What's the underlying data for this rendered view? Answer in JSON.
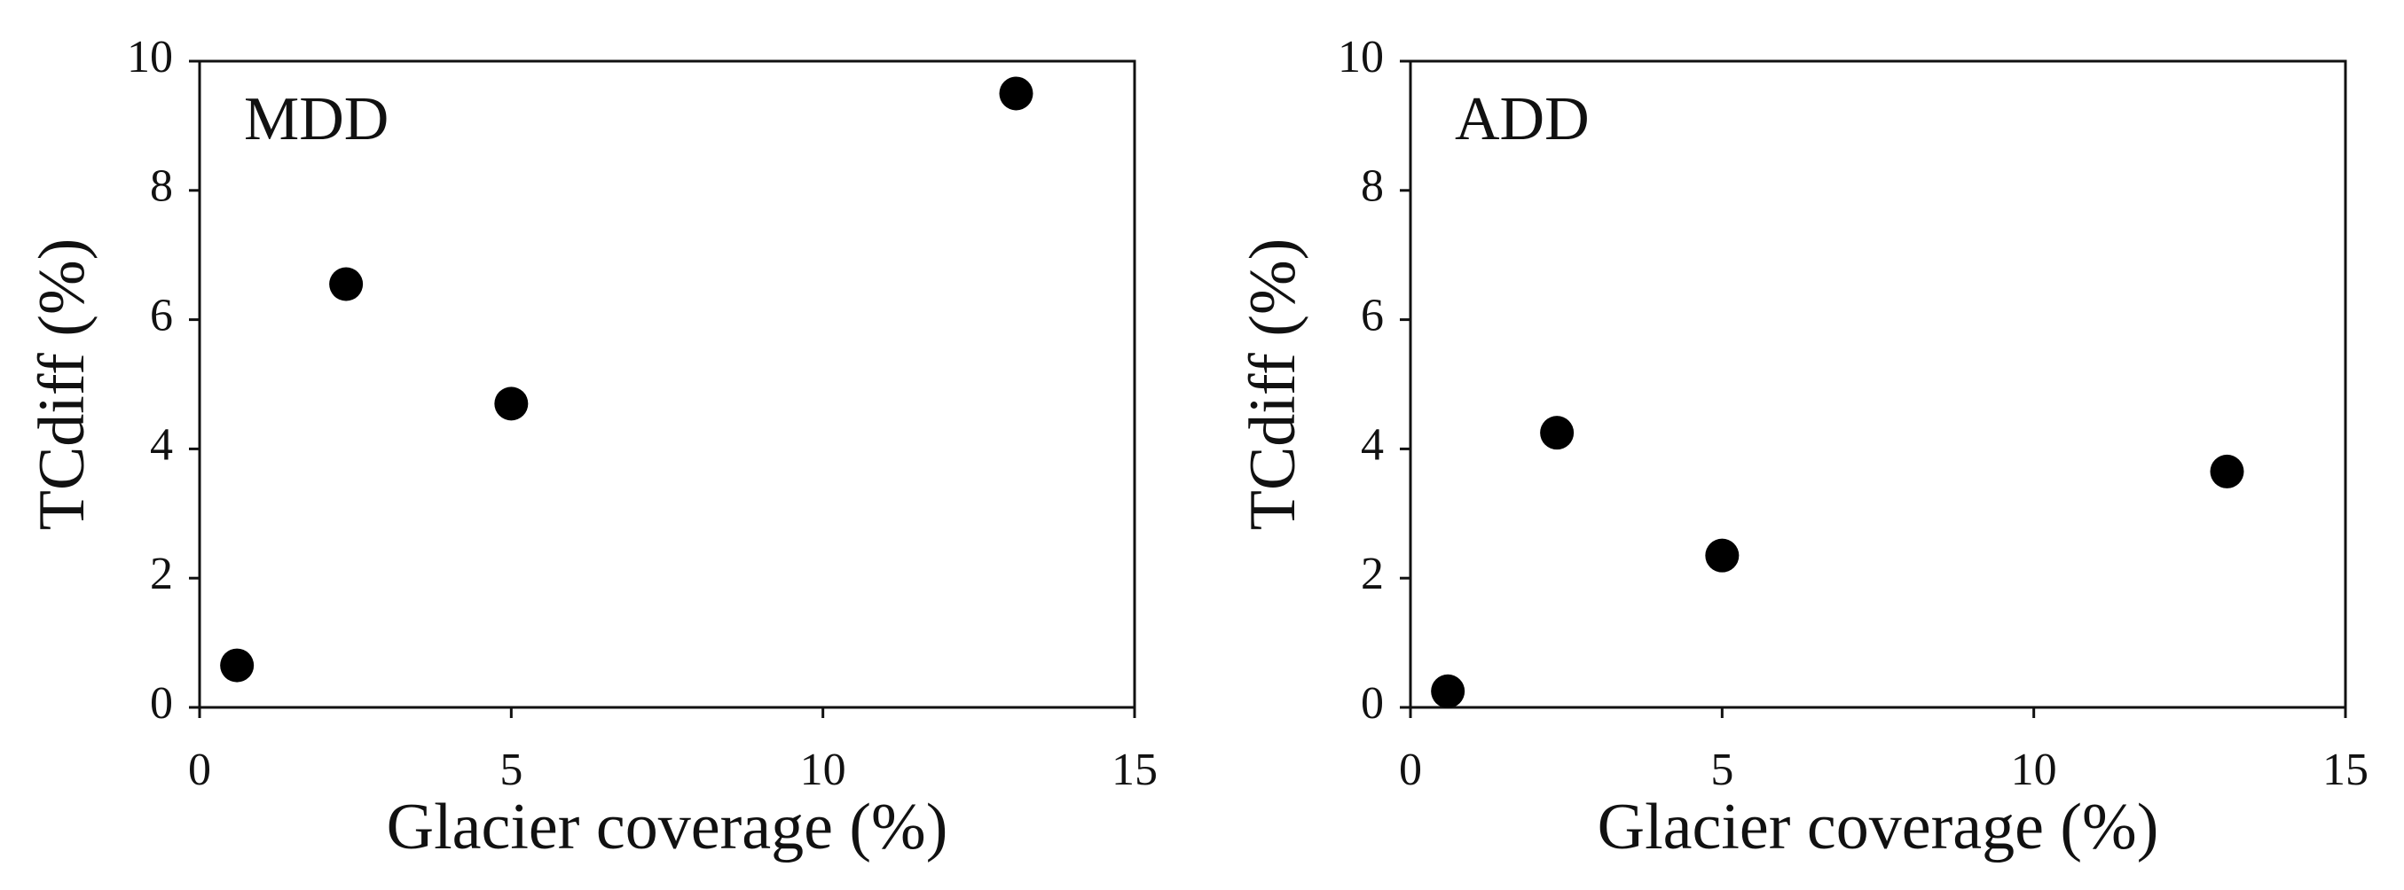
{
  "chart_data": [
    {
      "type": "scatter",
      "label": "MDD",
      "xlabel": "Glacier coverage (%)",
      "ylabel": "TCdiff (%)",
      "x": [
        0.6,
        2.35,
        5.0,
        13.1
      ],
      "values": [
        0.65,
        6.55,
        4.7,
        9.5
      ],
      "color": "#000000",
      "xlim": [
        0,
        15
      ],
      "ylim": [
        0,
        10
      ],
      "xticks": [
        0,
        5,
        10,
        15
      ],
      "yticks": [
        0,
        2,
        4,
        6,
        8,
        10
      ]
    },
    {
      "type": "scatter",
      "label": "ADD",
      "xlabel": "Glacier coverage (%)",
      "ylabel": "TCdiff (%)",
      "x": [
        0.6,
        2.35,
        5.0,
        13.1
      ],
      "values": [
        0.25,
        4.25,
        2.35,
        3.65
      ],
      "color": "#000000",
      "xlim": [
        0,
        15
      ],
      "ylim": [
        0,
        10
      ],
      "xticks": [
        0,
        5,
        10,
        15
      ],
      "yticks": [
        0,
        2,
        4,
        6,
        8,
        10
      ]
    }
  ]
}
